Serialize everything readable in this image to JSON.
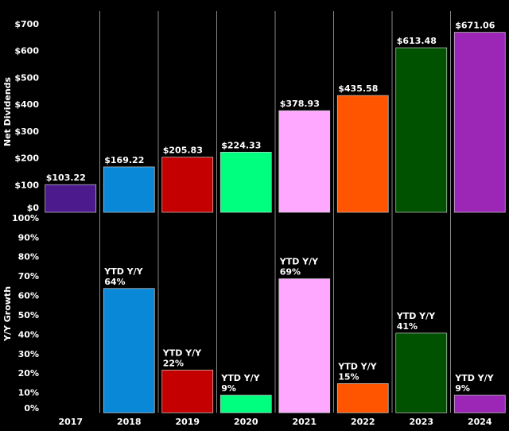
{
  "chart_data": [
    {
      "type": "bar",
      "ylabel": "Net Dividends",
      "values": [
        103.22,
        169.22,
        205.83,
        224.33,
        378.93,
        435.58,
        613.48,
        671.06
      ],
      "value_labels": [
        "$103.22",
        "$169.22",
        "$205.83",
        "$224.33",
        "$378.93",
        "$435.58",
        "$613.48",
        "$671.06"
      ],
      "colors": [
        "#4d1a8e",
        "#0a88d8",
        "#c40000",
        "#00ff7f",
        "#ffa8ff",
        "#ff5500",
        "#005200",
        "#9c27b6"
      ],
      "ylim": [
        0,
        750
      ],
      "yticks": [
        {
          "value": 0,
          "label": "$0"
        },
        {
          "value": 100,
          "label": "$100"
        },
        {
          "value": 200,
          "label": "$200"
        },
        {
          "value": 300,
          "label": "$300"
        },
        {
          "value": 400,
          "label": "$400"
        },
        {
          "value": 500,
          "label": "$500"
        },
        {
          "value": 600,
          "label": "$600"
        },
        {
          "value": 700,
          "label": "$700"
        }
      ]
    },
    {
      "type": "bar",
      "ylabel": "Y/Y Growth",
      "label_prefix": "YTD Y/Y",
      "categories": [
        "2017",
        "2018",
        "2019",
        "2020",
        "2021",
        "2022",
        "2023",
        "2024"
      ],
      "values": [
        null,
        64,
        22,
        9,
        69,
        15,
        41,
        9
      ],
      "value_labels": [
        null,
        "64%",
        "22%",
        "9%",
        "69%",
        "15%",
        "41%",
        "9%"
      ],
      "colors": [
        "#4d1a8e",
        "#0a88d8",
        "#c40000",
        "#00ff7f",
        "#ffa8ff",
        "#ff5500",
        "#005200",
        "#9c27b6"
      ],
      "ylim": [
        0,
        102
      ],
      "yticks": [
        {
          "value": 0,
          "label": "0%"
        },
        {
          "value": 10,
          "label": "10%"
        },
        {
          "value": 20,
          "label": "20%"
        },
        {
          "value": 30,
          "label": "30%"
        },
        {
          "value": 40,
          "label": "40%"
        },
        {
          "value": 50,
          "label": "50%"
        },
        {
          "value": 60,
          "label": "60%"
        },
        {
          "value": 70,
          "label": "70%"
        },
        {
          "value": 80,
          "label": "80%"
        },
        {
          "value": 90,
          "label": "90%"
        },
        {
          "value": 100,
          "label": "100%"
        }
      ]
    }
  ]
}
